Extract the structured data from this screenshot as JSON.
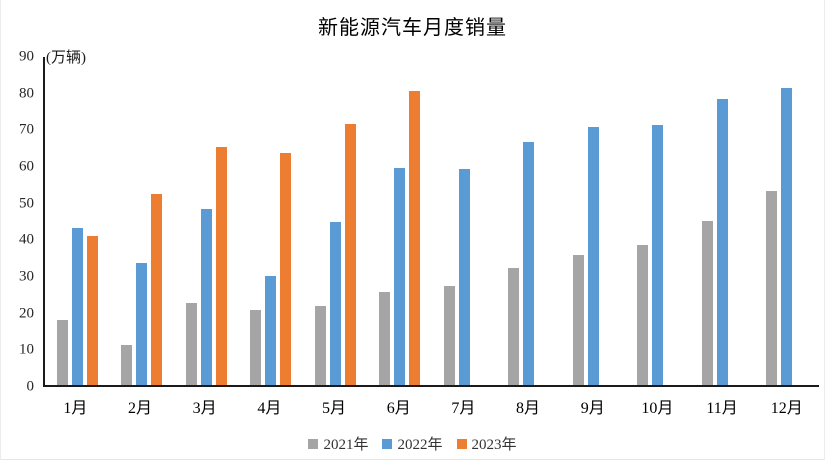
{
  "title": "新能源汽车月度销量",
  "axis_unit_label": "(万辆)",
  "colors": {
    "series_2021": "#A5A5A5",
    "series_2022": "#5B9BD5",
    "series_2023": "#ED7D31",
    "axis": "#1a1a1a",
    "text": "#262626"
  },
  "y_axis": {
    "min": 0,
    "max": 90,
    "ticks": [
      0,
      10,
      20,
      30,
      40,
      50,
      60,
      70,
      80,
      90
    ]
  },
  "legend": {
    "items": [
      {
        "label": "2021年",
        "color": "#A5A5A5"
      },
      {
        "label": "2022年",
        "color": "#5B9BD5"
      },
      {
        "label": "2023年",
        "color": "#ED7D31"
      }
    ]
  },
  "chart_data": {
    "type": "bar",
    "title": "新能源汽车月度销量",
    "ylabel": "(万辆)",
    "xlabel": "",
    "categories": [
      "1月",
      "2月",
      "3月",
      "4月",
      "5月",
      "6月",
      "7月",
      "8月",
      "9月",
      "10月",
      "11月",
      "12月"
    ],
    "series": [
      {
        "name": "2021年",
        "color": "#A5A5A5",
        "values": [
          17.9,
          11.0,
          22.6,
          20.6,
          21.7,
          25.6,
          27.1,
          32.1,
          35.7,
          38.3,
          45.0,
          53.1
        ]
      },
      {
        "name": "2022年",
        "color": "#5B9BD5",
        "values": [
          43.1,
          33.4,
          48.4,
          29.9,
          44.7,
          59.6,
          59.3,
          66.6,
          70.8,
          71.4,
          78.6,
          81.4
        ]
      },
      {
        "name": "2023年",
        "color": "#ED7D31",
        "values": [
          40.8,
          52.5,
          65.3,
          63.6,
          71.7,
          80.6,
          null,
          null,
          null,
          null,
          null,
          null
        ]
      }
    ],
    "ylim": [
      0,
      90
    ],
    "grid": false,
    "legend_position": "bottom"
  }
}
